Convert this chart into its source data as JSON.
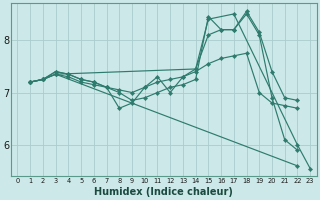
{
  "xlabel": "Humidex (Indice chaleur)",
  "bg_color": "#cce8e8",
  "line_color": "#2e7b6e",
  "grid_color": "#aacccc",
  "xlim": [
    -0.5,
    23.5
  ],
  "ylim": [
    5.4,
    8.7
  ],
  "yticks": [
    6,
    7,
    8
  ],
  "xticks": [
    0,
    1,
    2,
    3,
    4,
    5,
    6,
    7,
    8,
    9,
    10,
    11,
    12,
    13,
    14,
    15,
    16,
    17,
    18,
    19,
    20,
    21,
    22,
    23
  ],
  "series": [
    {
      "x": [
        1,
        2,
        3,
        4,
        5,
        6,
        7,
        8,
        9,
        10,
        11,
        12,
        13,
        14,
        15,
        16,
        17,
        18,
        19,
        20,
        21,
        22
      ],
      "y": [
        7.2,
        7.25,
        7.35,
        7.3,
        7.2,
        7.15,
        7.1,
        7.05,
        7.0,
        7.1,
        7.2,
        7.25,
        7.3,
        7.4,
        7.55,
        7.65,
        7.7,
        7.75,
        7.0,
        6.8,
        6.75,
        6.7
      ]
    },
    {
      "x": [
        1,
        2,
        3,
        4,
        5,
        6,
        7,
        8,
        9,
        10,
        11,
        12,
        13,
        14,
        15,
        16,
        17,
        18,
        19,
        20,
        21,
        22
      ],
      "y": [
        7.2,
        7.25,
        7.4,
        7.35,
        7.25,
        7.2,
        7.1,
        7.0,
        6.85,
        6.9,
        7.0,
        7.1,
        7.15,
        7.25,
        8.45,
        8.2,
        8.2,
        8.5,
        8.1,
        6.9,
        6.1,
        5.9
      ]
    },
    {
      "x": [
        1,
        2,
        3,
        4,
        5,
        6,
        7,
        8,
        9,
        10,
        11,
        12,
        13,
        14,
        15,
        16,
        17,
        18,
        19,
        20,
        21,
        22
      ],
      "y": [
        7.2,
        7.25,
        7.4,
        7.35,
        7.25,
        7.2,
        7.1,
        6.7,
        6.8,
        7.1,
        7.3,
        7.0,
        7.3,
        7.45,
        8.1,
        8.2,
        8.2,
        8.55,
        8.15,
        7.4,
        6.9,
        6.85
      ]
    },
    {
      "x": [
        1,
        2,
        3,
        22
      ],
      "y": [
        7.2,
        7.25,
        7.35,
        5.6
      ]
    },
    {
      "x": [
        1,
        2,
        3,
        14,
        15,
        17,
        22,
        23
      ],
      "y": [
        7.2,
        7.25,
        7.35,
        7.45,
        8.4,
        8.5,
        6.0,
        5.55
      ]
    }
  ]
}
